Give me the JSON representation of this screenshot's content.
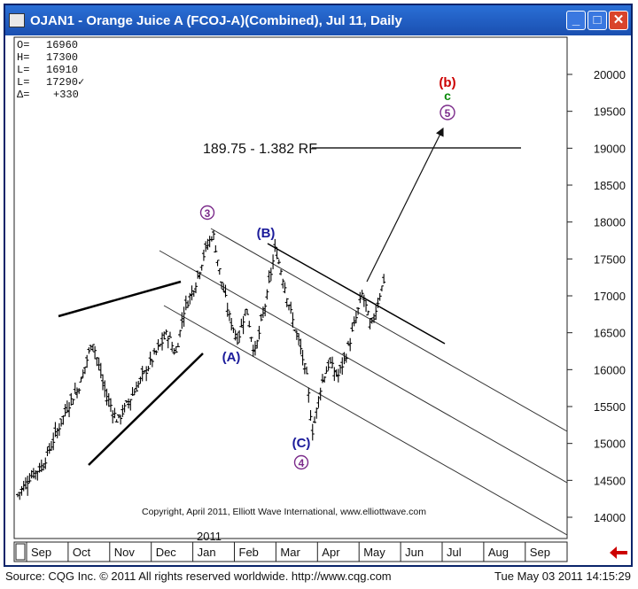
{
  "window": {
    "title": "OJAN1 - Orange Juice A (FCOJ-A)(Combined), Jul 11, Daily",
    "minimize_label": "_",
    "maximize_label": "□",
    "close_label": "✕",
    "nav_arrow_icon": "left-arrow-icon"
  },
  "quote_box": [
    {
      "key": "O=",
      "value": "16960"
    },
    {
      "key": "H=",
      "value": "17300"
    },
    {
      "key": "L=",
      "value": "16910"
    },
    {
      "key": "L=",
      "value": "17290✓"
    },
    {
      "key": "Δ=",
      "value": "+330"
    }
  ],
  "status": {
    "source": "Source: CQG Inc. © 2011 All rights reserved worldwide. http://www.cqg.com",
    "datetime": "Tue May 03 2011  14:15:29"
  },
  "chart_data": {
    "type": "bar",
    "subtype": "ohlc-price-bars",
    "x_tick_labels": [
      "Sep",
      "Oct",
      "Nov",
      "Dec",
      "Jan",
      "Feb",
      "Mar",
      "Apr",
      "May",
      "Jun",
      "Jul",
      "Aug",
      "Sep"
    ],
    "year_label": "2011",
    "y_tick_labels": [
      "14000",
      "14500",
      "15000",
      "15500",
      "16000",
      "16500",
      "17000",
      "17500",
      "18000",
      "18500",
      "19000",
      "19500",
      "20000"
    ],
    "ylim": [
      13800,
      20400
    ],
    "grid": false,
    "price_path": [
      [
        0.0,
        14300
      ],
      [
        0.3,
        14550
      ],
      [
        0.6,
        14700
      ],
      [
        0.9,
        15100
      ],
      [
        1.2,
        15500
      ],
      [
        1.5,
        15800
      ],
      [
        1.8,
        16400
      ],
      [
        2.1,
        15700
      ],
      [
        2.4,
        15300
      ],
      [
        2.7,
        15600
      ],
      [
        3.0,
        15900
      ],
      [
        3.3,
        16200
      ],
      [
        3.6,
        16500
      ],
      [
        3.8,
        16200
      ],
      [
        4.0,
        16800
      ],
      [
        4.3,
        17200
      ],
      [
        4.5,
        17600
      ],
      [
        4.7,
        17850
      ],
      [
        4.9,
        17200
      ],
      [
        5.1,
        16700
      ],
      [
        5.3,
        16400
      ],
      [
        5.5,
        16850
      ],
      [
        5.7,
        16200
      ],
      [
        6.0,
        17000
      ],
      [
        6.2,
        17650
      ],
      [
        6.4,
        17200
      ],
      [
        6.6,
        16700
      ],
      [
        6.8,
        16300
      ],
      [
        6.95,
        15900
      ],
      [
        7.1,
        15150
      ],
      [
        7.3,
        15800
      ],
      [
        7.5,
        16100
      ],
      [
        7.7,
        15900
      ],
      [
        7.9,
        16200
      ],
      [
        8.1,
        16600
      ],
      [
        8.3,
        17050
      ],
      [
        8.5,
        16550
      ],
      [
        8.7,
        17000
      ],
      [
        8.85,
        17290
      ]
    ],
    "annotations": {
      "wave3": "3",
      "waveA": "(A)",
      "waveB": "(B)",
      "waveC": "(C)",
      "wave4": "4",
      "waveb_red": "(b)",
      "wavec_green": "c",
      "wave5": "5",
      "target_label": "189.75 - 1.382 RF",
      "target_value": 18975,
      "copyright": "Copyright, April 2011, Elliott Wave International, www.elliottwave.com"
    },
    "colors": {
      "wave_purple": "#7b2a8a",
      "wave_blue": "#1a1a9a",
      "wave_red": "#cc0000",
      "wave_green": "#0a8a0a",
      "window_blue": "#1a4fb0",
      "nav_arrow": "#cc0000"
    }
  }
}
